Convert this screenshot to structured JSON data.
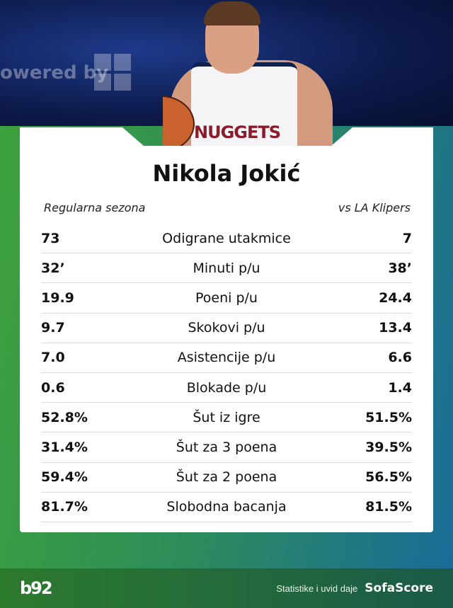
{
  "header": {
    "background_text": "owered by"
  },
  "player": {
    "name": "Nikola Jokić",
    "jersey_text": "NUGGETS"
  },
  "columns": {
    "left": "Regularna sezona",
    "right": "vs LA Klipers"
  },
  "stats": [
    {
      "label": "Odigrane utakmice",
      "season": "73",
      "vs": "7"
    },
    {
      "label": "Minuti p/u",
      "season": "32’",
      "vs": "38’"
    },
    {
      "label": "Poeni p/u",
      "season": "19.9",
      "vs": "24.4"
    },
    {
      "label": "Skokovi p/u",
      "season": "9.7",
      "vs": "13.4"
    },
    {
      "label": "Asistencije p/u",
      "season": "7.0",
      "vs": "6.6"
    },
    {
      "label": "Blokade p/u",
      "season": "0.6",
      "vs": "1.4"
    },
    {
      "label": "Šut iz igre",
      "season": "52.8%",
      "vs": "51.5%"
    },
    {
      "label": "Šut za 3 poena",
      "season": "31.4%",
      "vs": "39.5%"
    },
    {
      "label": "Šut za 2 poena",
      "season": "59.4%",
      "vs": "56.5%"
    },
    {
      "label": "Slobodna bacanja",
      "season": "81.7%",
      "vs": "81.5%"
    }
  ],
  "footer": {
    "logo": "b92",
    "credit": "Statistike i uvid daje",
    "brand": "SofaScore"
  }
}
